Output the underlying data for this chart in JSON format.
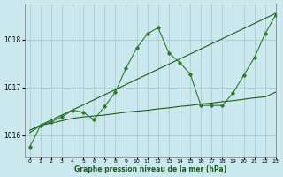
{
  "background_color": "#cce8ef",
  "grid_color": "#aacccc",
  "line_color_dark": "#1a5c1a",
  "line_color_medium": "#2d7a2d",
  "xlabel": "Graphe pression niveau de la mer (hPa)",
  "xlim": [
    -0.5,
    23
  ],
  "ylim": [
    1015.55,
    1018.75
  ],
  "yticks": [
    1016,
    1017,
    1018
  ],
  "xticks": [
    0,
    1,
    2,
    3,
    4,
    5,
    6,
    7,
    8,
    9,
    10,
    11,
    12,
    13,
    14,
    15,
    16,
    17,
    18,
    19,
    20,
    21,
    22,
    23
  ],
  "series_flat": {
    "x": [
      0,
      1,
      2,
      3,
      4,
      5,
      6,
      7,
      8,
      9,
      10,
      11,
      12,
      13,
      14,
      15,
      16,
      17,
      18,
      19,
      20,
      21,
      22,
      23
    ],
    "y": [
      1016.05,
      1016.2,
      1016.25,
      1016.3,
      1016.35,
      1016.38,
      1016.4,
      1016.42,
      1016.45,
      1016.48,
      1016.5,
      1016.52,
      1016.55,
      1016.57,
      1016.6,
      1016.62,
      1016.65,
      1016.67,
      1016.7,
      1016.72,
      1016.75,
      1016.78,
      1016.8,
      1016.9
    ]
  },
  "series_trend": {
    "x": [
      0,
      23
    ],
    "y": [
      1016.1,
      1018.55
    ]
  },
  "series_volatile": {
    "x": [
      0,
      1,
      2,
      3,
      4,
      5,
      6,
      7,
      8,
      9,
      10,
      11,
      12,
      13,
      14,
      15,
      16,
      17,
      18,
      19,
      20,
      21,
      22,
      23
    ],
    "y": [
      1015.75,
      1016.2,
      1016.28,
      1016.38,
      1016.52,
      1016.48,
      1016.32,
      1016.6,
      1016.9,
      1017.4,
      1017.82,
      1018.12,
      1018.25,
      1017.72,
      1017.52,
      1017.28,
      1016.62,
      1016.62,
      1016.62,
      1016.88,
      1017.25,
      1017.62,
      1018.12,
      1018.52
    ]
  }
}
